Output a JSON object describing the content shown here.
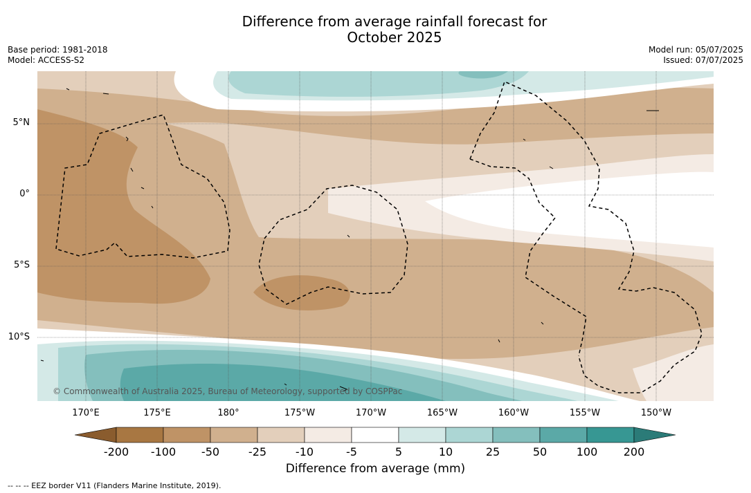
{
  "title_line1": "Difference from average rainfall forecast for",
  "title_line2": "October 2025",
  "meta_left": {
    "base_period": "Base period: 1981-2018",
    "model": "Model: ACCESS-S2"
  },
  "meta_right": {
    "model_run": "Model run: 05/07/2025",
    "issued": "Issued: 07/07/2025"
  },
  "map": {
    "lat_labels": [
      "5°N",
      "0°",
      "5°S",
      "10°S"
    ],
    "lon_labels": [
      "170°E",
      "175°E",
      "180°",
      "175°W",
      "170°W",
      "165°W",
      "160°W",
      "155°W",
      "150°W"
    ],
    "copyright": "© Commonwealth of Australia 2025, Bureau of Meteorology, supported by COSPPac",
    "colors": {
      "dry_200": "#a87742",
      "dry_100": "#bf9366",
      "dry_50": "#d0b08e",
      "dry_25": "#e3cfbb",
      "dry_10": "#f4ebe4",
      "neutral": "#ffffff",
      "wet_10": "#d4e9e7",
      "wet_25": "#acd6d4",
      "wet_50": "#84bfbd",
      "wet_100": "#5ba9a7",
      "wet_200": "#379793"
    }
  },
  "colorbar": {
    "ticks": [
      "-200",
      "-100",
      "-50",
      "-25",
      "-10",
      "-5",
      "5",
      "10",
      "25",
      "50",
      "100",
      "200"
    ],
    "colors": [
      "#a87742",
      "#bf9366",
      "#d0b08e",
      "#e3cfbb",
      "#f4ebe4",
      "#ffffff",
      "#d4e9e7",
      "#acd6d4",
      "#84bfbd",
      "#5ba9a7",
      "#379793"
    ],
    "under_color": "#8a5c2e",
    "over_color": "#2b7b78",
    "label": "Difference from average (mm)"
  },
  "legend_note": "-- -- -- EEZ border V11 (Flanders Marine Institute, 2019)."
}
